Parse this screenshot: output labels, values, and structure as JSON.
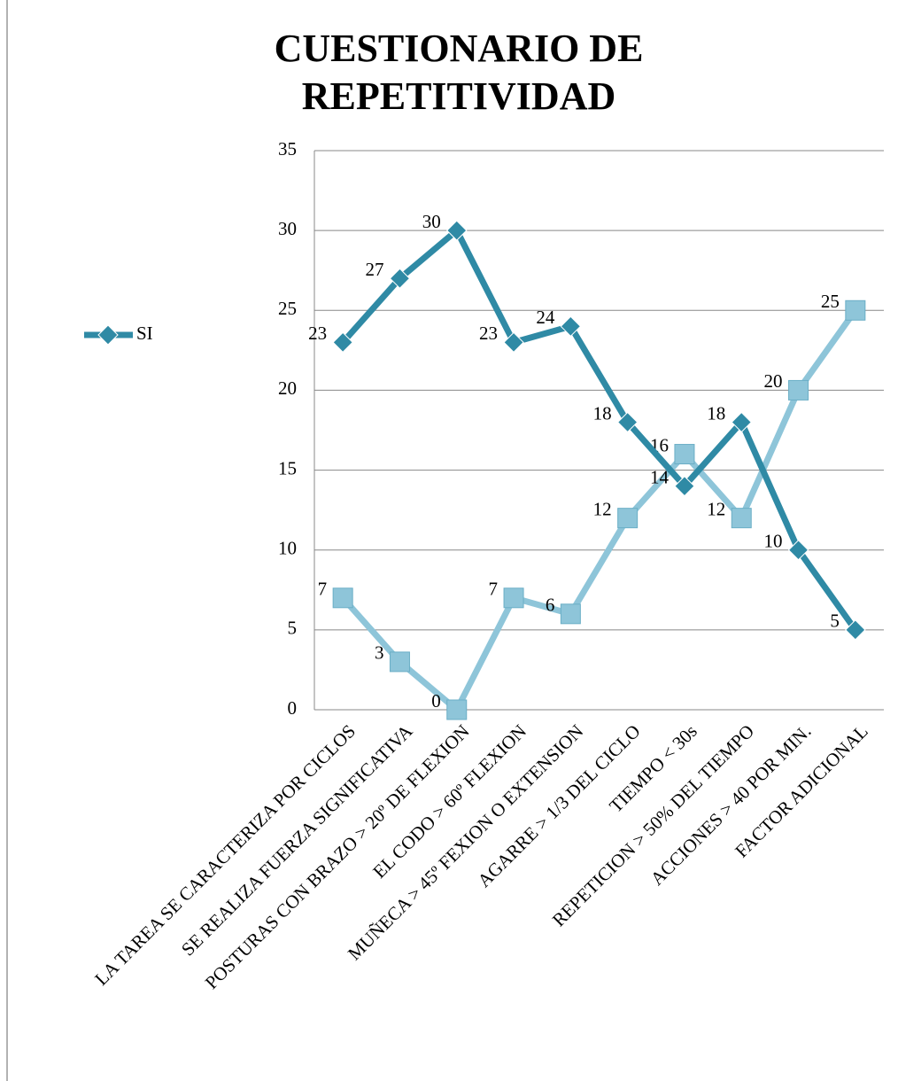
{
  "chart_data": {
    "type": "line",
    "title": "CUESTIONARIO DE REPETITIVIDAD",
    "categories": [
      "LA TAREA SE CARACTERIZA POR CICLOS",
      "SE REALIZA FUERZA SIGNIFICATIVA",
      "POSTURAS CON BRAZO > 20º DE FLEXION",
      "EL CODO > 60º FLEXION",
      "MUÑECA > 45º FEXION  O EXTENSION",
      "AGARRE > 1/3 DEL CICLO",
      "TIEMPO < 30s",
      "REPETICION > 50% DEL TIEMPO",
      "ACCIONES > 40 POR MIN.",
      "FACTOR ADICIONAL"
    ],
    "series": [
      {
        "name": "SI",
        "color": "#2f8aa5",
        "marker": "diamond",
        "values": [
          23,
          27,
          30,
          23,
          24,
          18,
          14,
          18,
          10,
          5
        ]
      },
      {
        "color": "#8ec5d9",
        "marker": "square",
        "values": [
          7,
          3,
          0,
          7,
          6,
          12,
          16,
          12,
          20,
          25
        ]
      }
    ],
    "ylim": [
      0,
      35
    ],
    "yticks": [
      0,
      5,
      10,
      15,
      20,
      25,
      30,
      35
    ],
    "grid": true,
    "legend": "left"
  }
}
